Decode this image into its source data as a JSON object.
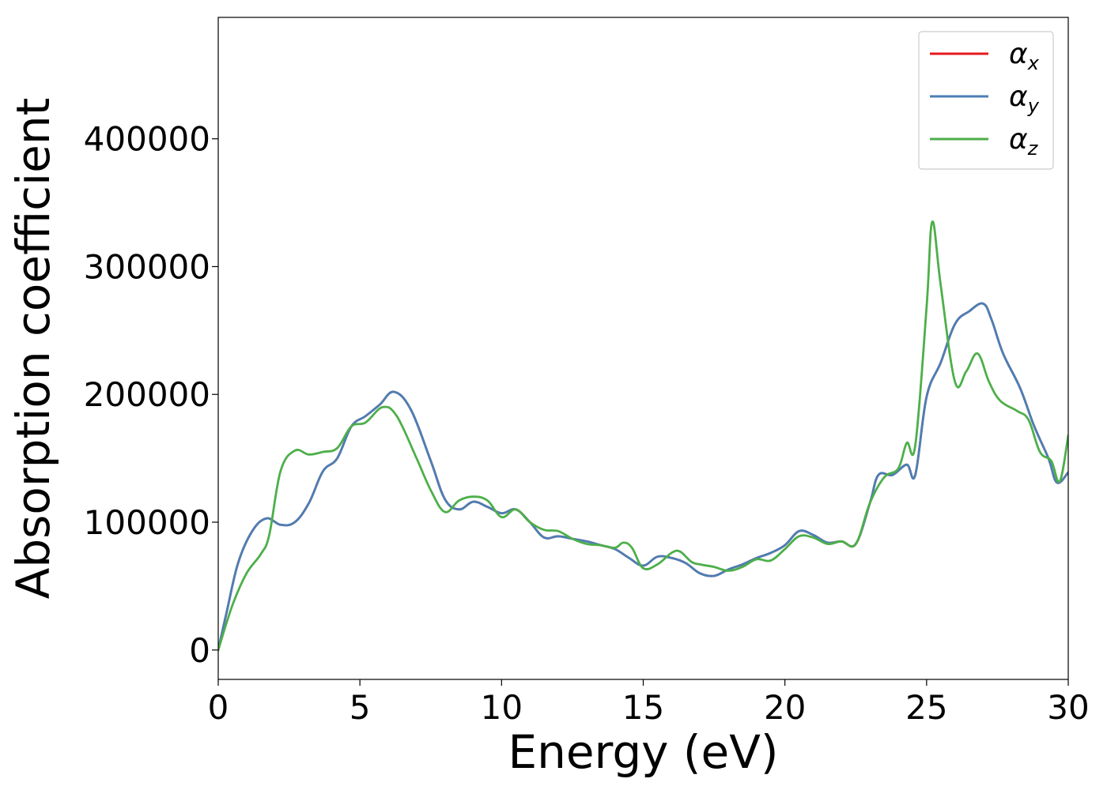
{
  "chart_data": {
    "type": "line",
    "xlabel": "Energy (eV)",
    "ylabel": "Absorption coefficient",
    "xlim": [
      0,
      30
    ],
    "ylim": [
      -23000,
      495000
    ],
    "xticks": [
      0,
      5,
      10,
      15,
      20,
      25,
      30
    ],
    "yticks": [
      0,
      100000,
      200000,
      300000,
      400000
    ],
    "legend_position": "top-right",
    "grid": false,
    "legend": [
      {
        "symbol": "α",
        "sub": "x",
        "color": "#e41a1c"
      },
      {
        "symbol": "α",
        "sub": "y",
        "color": "#4a7fb5"
      },
      {
        "symbol": "α",
        "sub": "z",
        "color": "#4daf4a"
      }
    ],
    "series": [
      {
        "color": "#e41a1c",
        "x": [
          0,
          0.3,
          0.7,
          1.2,
          1.7,
          2.2,
          2.7,
          3.2,
          3.7,
          4.2,
          4.7,
          5.2,
          5.7,
          6.2,
          6.8,
          7.5,
          8.0,
          8.5,
          9.0,
          9.5,
          10.0,
          10.5,
          11.0,
          11.5,
          12.0,
          12.5,
          13.0,
          13.5,
          14.0,
          14.5,
          15.0,
          15.5,
          16.0,
          16.5,
          17.0,
          17.5,
          18.0,
          18.5,
          19.0,
          19.5,
          20.0,
          20.5,
          21.0,
          21.5,
          22.0,
          22.5,
          23.0,
          23.3,
          23.8,
          24.3,
          24.6,
          25.0,
          25.5,
          26.0,
          26.5,
          27.0,
          27.3,
          27.7,
          28.3,
          28.8,
          29.3,
          29.6,
          30.0
        ],
        "y": [
          0,
          30000,
          68000,
          93000,
          103000,
          98000,
          100000,
          115000,
          140000,
          150000,
          175000,
          183000,
          192000,
          202000,
          188000,
          148000,
          118000,
          110000,
          116000,
          112000,
          107000,
          110000,
          100000,
          88000,
          89000,
          87000,
          85000,
          82000,
          79000,
          72000,
          66000,
          73000,
          72000,
          68000,
          60000,
          58000,
          63000,
          67000,
          72000,
          76000,
          82000,
          93000,
          90000,
          84000,
          85000,
          83000,
          115000,
          137000,
          137000,
          145000,
          137000,
          198000,
          225000,
          255000,
          265000,
          271000,
          258000,
          232000,
          205000,
          175000,
          150000,
          131000,
          139000
        ]
      },
      {
        "color": "#4a7fb5",
        "x": [
          0,
          0.3,
          0.7,
          1.2,
          1.7,
          2.2,
          2.7,
          3.2,
          3.7,
          4.2,
          4.7,
          5.2,
          5.7,
          6.2,
          6.8,
          7.5,
          8.0,
          8.5,
          9.0,
          9.5,
          10.0,
          10.5,
          11.0,
          11.5,
          12.0,
          12.5,
          13.0,
          13.5,
          14.0,
          14.5,
          15.0,
          15.5,
          16.0,
          16.5,
          17.0,
          17.5,
          18.0,
          18.5,
          19.0,
          19.5,
          20.0,
          20.5,
          21.0,
          21.5,
          22.0,
          22.5,
          23.0,
          23.3,
          23.8,
          24.3,
          24.6,
          25.0,
          25.5,
          26.0,
          26.5,
          27.0,
          27.3,
          27.7,
          28.3,
          28.8,
          29.3,
          29.6,
          30.0
        ],
        "y": [
          0,
          30000,
          68000,
          93000,
          103000,
          98000,
          100000,
          115000,
          140000,
          150000,
          175000,
          183000,
          192000,
          202000,
          188000,
          148000,
          118000,
          110000,
          116000,
          112000,
          107000,
          110000,
          100000,
          88000,
          89000,
          87000,
          85000,
          82000,
          79000,
          72000,
          66000,
          73000,
          72000,
          68000,
          60000,
          58000,
          63000,
          67000,
          72000,
          76000,
          82000,
          93000,
          90000,
          84000,
          85000,
          83000,
          115000,
          137000,
          137000,
          145000,
          137000,
          198000,
          225000,
          255000,
          265000,
          271000,
          258000,
          232000,
          205000,
          175000,
          150000,
          131000,
          139000
        ]
      },
      {
        "color": "#4daf4a",
        "x": [
          0,
          0.5,
          1.0,
          1.5,
          1.8,
          2.2,
          2.7,
          3.2,
          3.7,
          4.2,
          4.7,
          5.2,
          5.8,
          6.3,
          7.0,
          7.5,
          8.0,
          8.5,
          9.0,
          9.5,
          10.0,
          10.5,
          11.0,
          11.5,
          12.0,
          12.5,
          13.0,
          13.5,
          14.0,
          14.3,
          14.6,
          15.0,
          15.5,
          16.0,
          16.3,
          16.7,
          17.0,
          17.5,
          18.0,
          18.5,
          19.0,
          19.5,
          20.0,
          20.5,
          21.0,
          21.5,
          22.0,
          22.5,
          23.0,
          23.5,
          24.0,
          24.3,
          24.6,
          25.0,
          25.2,
          25.5,
          26.0,
          26.4,
          26.8,
          27.2,
          27.6,
          28.2,
          28.6,
          29.0,
          29.4,
          29.7,
          30.0
        ],
        "y": [
          0,
          35000,
          60000,
          75000,
          90000,
          140000,
          156000,
          153000,
          155000,
          158000,
          175000,
          178000,
          190000,
          183000,
          150000,
          125000,
          108000,
          117000,
          120000,
          117000,
          104000,
          110000,
          100000,
          94000,
          93000,
          87000,
          83000,
          82000,
          80000,
          84000,
          80000,
          64000,
          67000,
          76000,
          77000,
          69000,
          67000,
          65000,
          62000,
          65000,
          71000,
          70000,
          79000,
          89000,
          88000,
          83000,
          85000,
          83000,
          115000,
          135000,
          142000,
          162000,
          160000,
          268000,
          335000,
          285000,
          210000,
          218000,
          232000,
          210000,
          195000,
          187000,
          180000,
          155000,
          148000,
          132000,
          168000
        ]
      }
    ]
  }
}
